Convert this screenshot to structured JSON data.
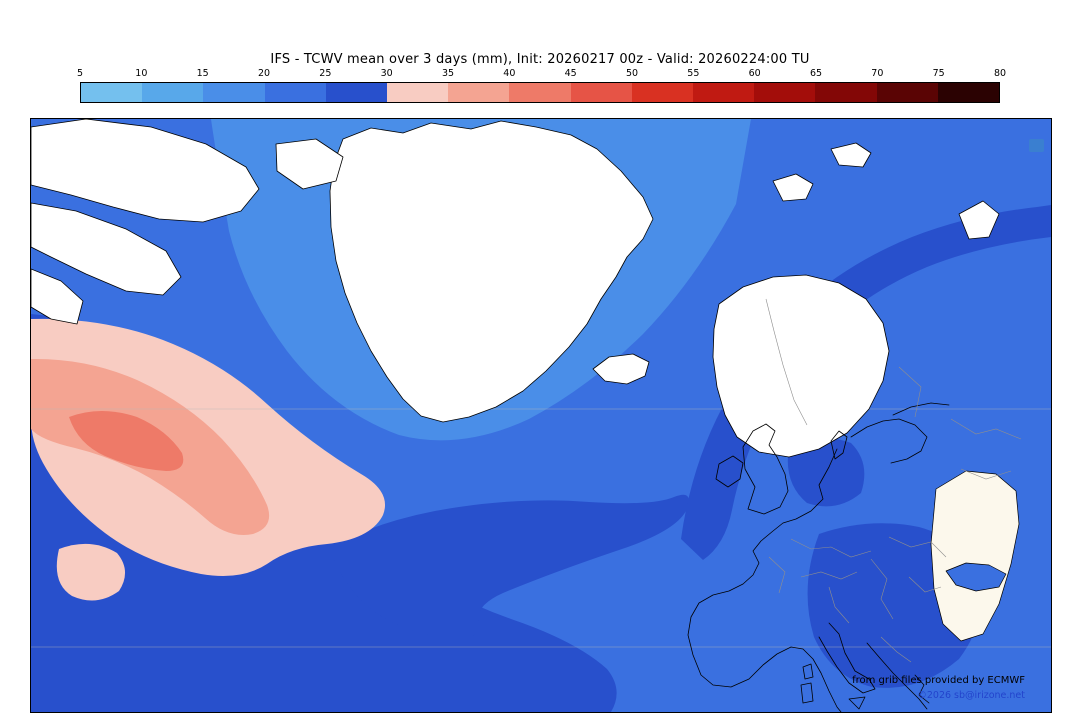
{
  "header": {
    "title": "IFS - TCWV mean over 3 days (mm), Init: 20260217 00z - Valid: 20260224:00 TU"
  },
  "colorbar": {
    "tick_labels": [
      "5",
      "10",
      "15",
      "20",
      "25",
      "30",
      "35",
      "40",
      "45",
      "50",
      "55",
      "60",
      "65",
      "70",
      "75",
      "80"
    ],
    "segment_colors": [
      "#74c0ee",
      "#58a8ea",
      "#4a8ee8",
      "#3a70e0",
      "#2850cc",
      "#f8ccc2",
      "#f4a492",
      "#ee7a68",
      "#e65446",
      "#d93122",
      "#c01a12",
      "#a30d0a",
      "#830706",
      "#5a0404",
      "#2b0202"
    ]
  },
  "map": {
    "credit_line1": "from grib files provided by ECMWF",
    "credit_line2": "©2026 sb@irizone.net",
    "credit_link_color": "#2344cc",
    "marker_square_color": "#3a7fd0"
  },
  "chart_data": {
    "type": "heatmap",
    "title": "IFS - TCWV mean over 3 days (mm)",
    "init_label": "Init: 20260217 00z",
    "valid_label": "Valid: 20260224:00 TU",
    "variable": "TCWV",
    "unit": "mm",
    "scale_ticks": [
      5,
      10,
      15,
      20,
      25,
      30,
      35,
      40,
      45,
      50,
      55,
      60,
      65,
      70,
      75,
      80
    ],
    "scale_colors": [
      "#74c0ee",
      "#58a8ea",
      "#4a8ee8",
      "#3a70e0",
      "#2850cc",
      "#f8ccc2",
      "#f4a492",
      "#ee7a68",
      "#e65446",
      "#d93122",
      "#c01a12",
      "#a30d0a",
      "#830706",
      "#5a0404",
      "#2b0202"
    ],
    "legend_position": "top",
    "region": "North Atlantic / Europe",
    "value_bands_on_map": [
      15,
      20,
      25,
      30,
      35,
      40,
      45
    ]
  }
}
